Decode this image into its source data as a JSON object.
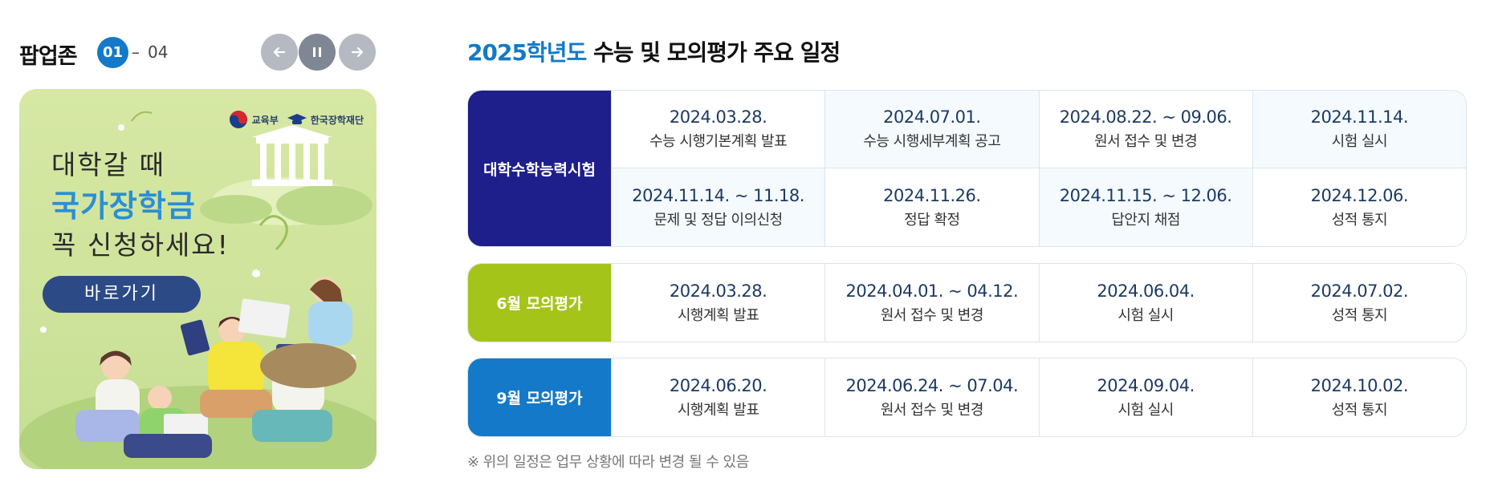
{
  "popup": {
    "title": "팝업존",
    "current": "01",
    "separator": "–",
    "total": "04",
    "controls": {
      "prev_icon": "arrow-left-icon",
      "pause_icon": "pause-icon",
      "next_icon": "arrow-right-icon"
    },
    "banner": {
      "logo_moe": "교육부",
      "logo_kosaf": "한국장학재단",
      "line1": "대학갈 때",
      "line2": "국가장학금",
      "line3": "꼭 신청하세요!",
      "button_label": "바로가기"
    }
  },
  "schedule": {
    "title_year": "2025학년도",
    "title_rest": " 수능 및 모의평가 주요 일정",
    "groups": [
      {
        "label": "대학수학능력시험",
        "color": "#1e1f8a",
        "items": [
          {
            "date": "2024.03.28.",
            "desc": "수능 시행기본계획 발표"
          },
          {
            "date": "2024.07.01.",
            "desc": "수능 시행세부계획 공고"
          },
          {
            "date": "2024.08.22. ~ 09.06.",
            "desc": "원서 접수 및 변경"
          },
          {
            "date": "2024.11.14.",
            "desc": "시험 실시"
          },
          {
            "date": "2024.11.14. ~ 11.18.",
            "desc": "문제 및 정답 이의신청"
          },
          {
            "date": "2024.11.26.",
            "desc": "정답 확정"
          },
          {
            "date": "2024.11.15. ~ 12.06.",
            "desc": "답안지 채점"
          },
          {
            "date": "2024.12.06.",
            "desc": "성적 통지"
          }
        ]
      },
      {
        "label": "6월 모의평가",
        "color": "#a5c41a",
        "items": [
          {
            "date": "2024.03.28.",
            "desc": "시행계획 발표"
          },
          {
            "date": "2024.04.01. ~ 04.12.",
            "desc": "원서 접수 및 변경"
          },
          {
            "date": "2024.06.04.",
            "desc": "시험 실시"
          },
          {
            "date": "2024.07.02.",
            "desc": "성적 통지"
          }
        ]
      },
      {
        "label": "9월 모의평가",
        "color": "#1479c8",
        "items": [
          {
            "date": "2024.06.20.",
            "desc": "시행계획 발표"
          },
          {
            "date": "2024.06.24. ~ 07.04.",
            "desc": "원서 접수 및 변경"
          },
          {
            "date": "2024.09.04.",
            "desc": "시험 실시"
          },
          {
            "date": "2024.10.02.",
            "desc": "성적 통지"
          }
        ]
      }
    ],
    "note": "※ 위의 일정은 업무 상황에 따라 변경 될 수 있음"
  }
}
